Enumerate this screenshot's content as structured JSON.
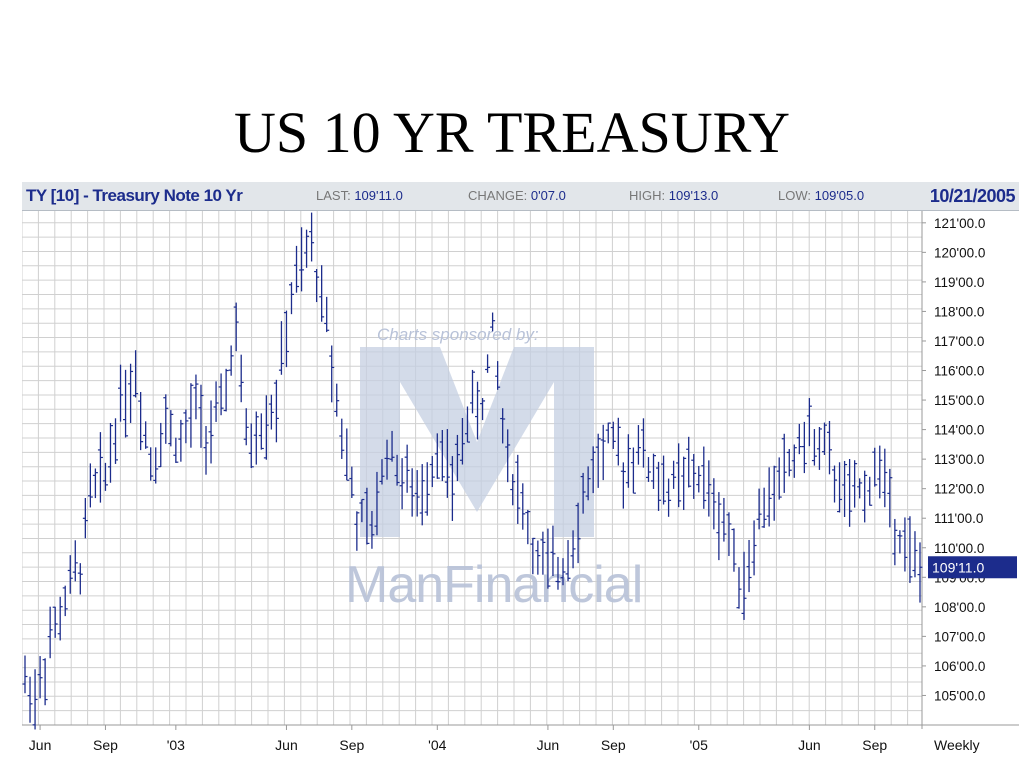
{
  "slide": {
    "title": "US 10 YR TREASURY"
  },
  "header": {
    "instrument": "TY [10] - Treasury Note 10 Yr",
    "last_label": "LAST:",
    "last_value": "109'11.0",
    "change_label": "CHANGE:",
    "change_value": "0'07.0",
    "high_label": "HIGH:",
    "high_value": "109'13.0",
    "low_label": "LOW:",
    "low_value": "109'05.0",
    "date": "10/21/2005"
  },
  "watermark": {
    "sponsor_text": "Charts sponsored by:",
    "brand": "ManFinancial"
  },
  "colors": {
    "bars": "#1c2c8c",
    "grid": "#d0d0d0",
    "header_bg": "#e2e6ea",
    "last_badge": "#1c2c8c",
    "watermark": "#c5cfe2"
  },
  "chart_data": {
    "type": "ohlc",
    "periodicity": "Weekly",
    "last_price_label": "109'11.0",
    "last_price": 109.34,
    "ylim": [
      104.0,
      121.4
    ],
    "y_ticks": [
      {
        "value": 121,
        "label": "121'00.0"
      },
      {
        "value": 120,
        "label": "120'00.0"
      },
      {
        "value": 119,
        "label": "119'00.0"
      },
      {
        "value": 118,
        "label": "118'00.0"
      },
      {
        "value": 117,
        "label": "117'00.0"
      },
      {
        "value": 116,
        "label": "116'00.0"
      },
      {
        "value": 115,
        "label": "115'00.0"
      },
      {
        "value": 114,
        "label": "114'00.0"
      },
      {
        "value": 113,
        "label": "113'00.0"
      },
      {
        "value": 112,
        "label": "112'00.0"
      },
      {
        "value": 111,
        "label": "111'00.0"
      },
      {
        "value": 110,
        "label": "110'00.0"
      },
      {
        "value": 109,
        "label": "109'00.0"
      },
      {
        "value": 108,
        "label": "108'00.0"
      },
      {
        "value": 107,
        "label": "107'00.0"
      },
      {
        "value": 106,
        "label": "106'00.0"
      },
      {
        "value": 105,
        "label": "105'00.0"
      }
    ],
    "x_ticks": [
      {
        "week": 3,
        "label": "Jun"
      },
      {
        "week": 16,
        "label": "Sep"
      },
      {
        "week": 30,
        "label": "'03"
      },
      {
        "week": 52,
        "label": "Jun"
      },
      {
        "week": 65,
        "label": "Sep"
      },
      {
        "week": 82,
        "label": "'04"
      },
      {
        "week": 104,
        "label": "Jun"
      },
      {
        "week": 117,
        "label": "Sep"
      },
      {
        "week": 134,
        "label": "'05"
      },
      {
        "week": 156,
        "label": "Jun"
      },
      {
        "week": 169,
        "label": "Sep"
      }
    ],
    "keypoints": [
      [
        0,
        105.5
      ],
      [
        2,
        105.0
      ],
      [
        5,
        106.8
      ],
      [
        8,
        108.2
      ],
      [
        11,
        109.5
      ],
      [
        13,
        111.8
      ],
      [
        16,
        112.5
      ],
      [
        19,
        115.0
      ],
      [
        22,
        115.8
      ],
      [
        25,
        113.0
      ],
      [
        28,
        114.2
      ],
      [
        31,
        113.5
      ],
      [
        34,
        114.8
      ],
      [
        36,
        113.8
      ],
      [
        39,
        114.5
      ],
      [
        42,
        117.5
      ],
      [
        44,
        113.5
      ],
      [
        47,
        114.2
      ],
      [
        50,
        115.0
      ],
      [
        53,
        118.5
      ],
      [
        57,
        120.3
      ],
      [
        60,
        117.5
      ],
      [
        63,
        114.0
      ],
      [
        66,
        111.0
      ],
      [
        69,
        110.5
      ],
      [
        72,
        113.5
      ],
      [
        75,
        112.5
      ],
      [
        78,
        111.5
      ],
      [
        82,
        113.5
      ],
      [
        85,
        112.0
      ],
      [
        88,
        114.5
      ],
      [
        91,
        115.0
      ],
      [
        93,
        117.2
      ],
      [
        96,
        113.0
      ],
      [
        99,
        111.5
      ],
      [
        102,
        109.5
      ],
      [
        105,
        109.2
      ],
      [
        107,
        109.5
      ],
      [
        110,
        111.0
      ],
      [
        113,
        112.8
      ],
      [
        116,
        113.5
      ],
      [
        119,
        112.8
      ],
      [
        122,
        113.5
      ],
      [
        125,
        112.5
      ],
      [
        128,
        112.0
      ],
      [
        131,
        112.3
      ],
      [
        134,
        112.5
      ],
      [
        137,
        111.5
      ],
      [
        140,
        110.5
      ],
      [
        143,
        108.8
      ],
      [
        146,
        111.0
      ],
      [
        149,
        112.0
      ],
      [
        152,
        112.8
      ],
      [
        155,
        113.8
      ],
      [
        158,
        113.5
      ],
      [
        161,
        112.5
      ],
      [
        164,
        111.5
      ],
      [
        167,
        112.0
      ],
      [
        170,
        112.8
      ],
      [
        172,
        111.5
      ],
      [
        175,
        110.2
      ],
      [
        177,
        109.3
      ]
    ]
  }
}
